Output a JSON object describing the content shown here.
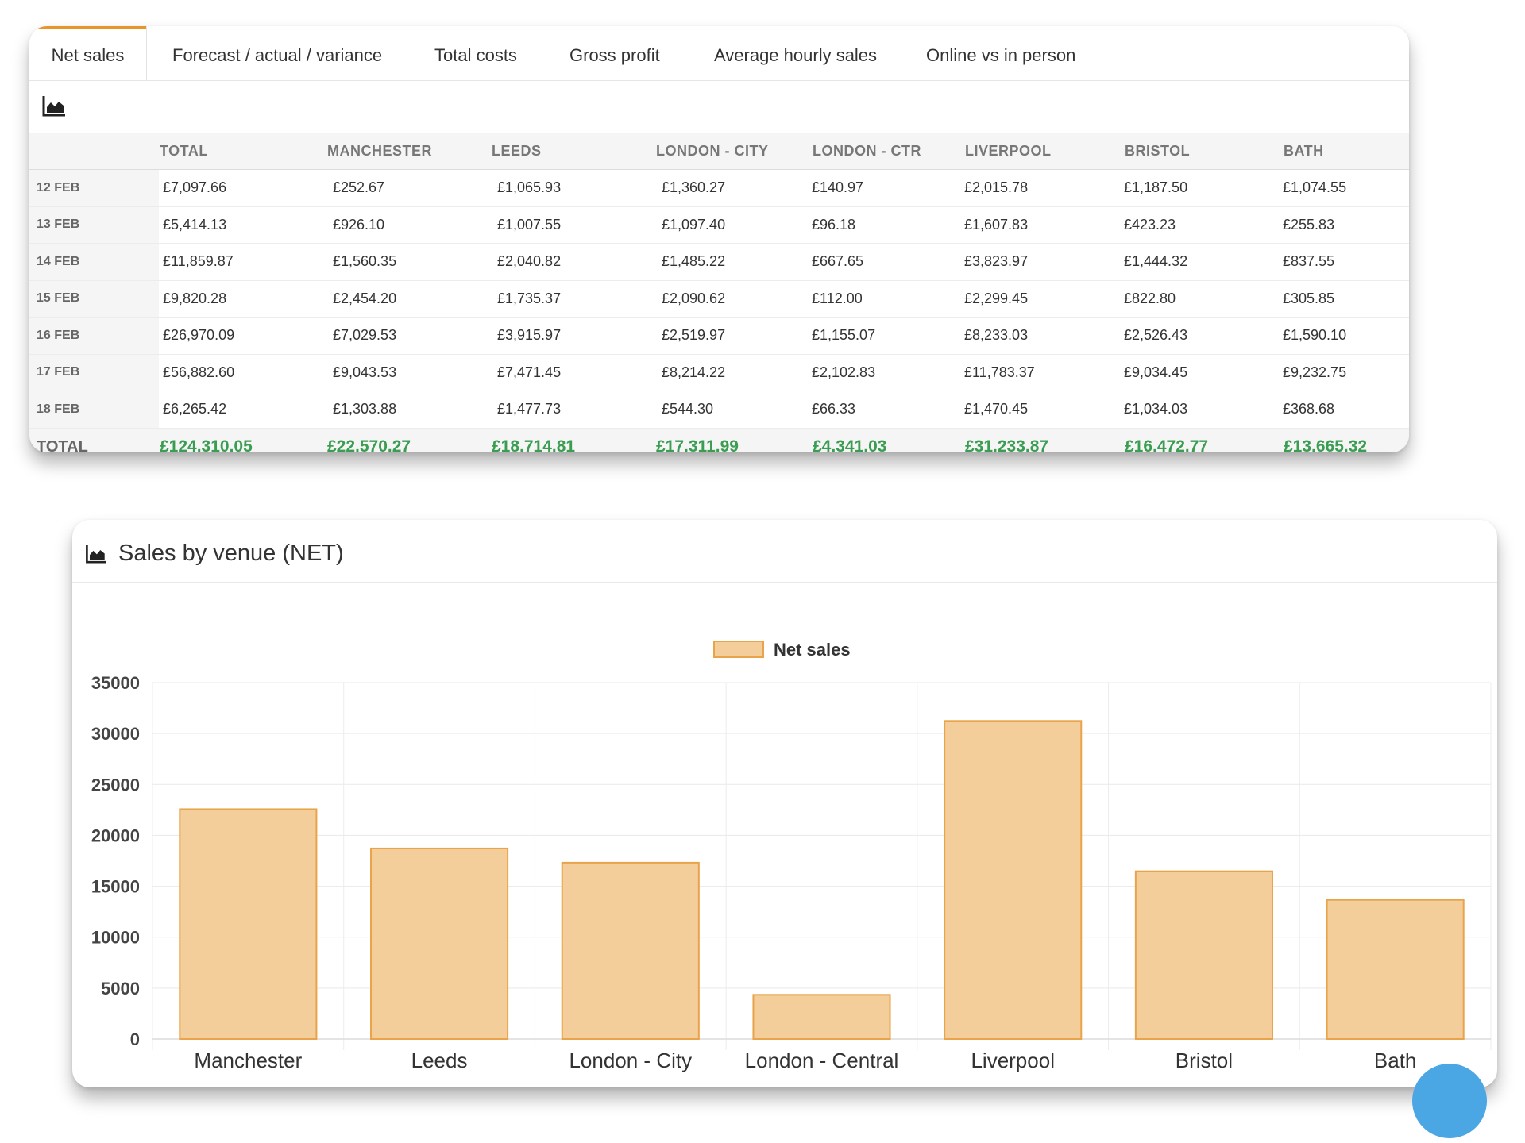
{
  "tabs": [
    {
      "label": "Net sales",
      "active": true
    },
    {
      "label": "Forecast / actual / variance",
      "active": false
    },
    {
      "label": "Total costs",
      "active": false
    },
    {
      "label": "Gross profit",
      "active": false
    },
    {
      "label": "Average hourly sales",
      "active": false
    },
    {
      "label": "Online vs in person",
      "active": false
    }
  ],
  "table": {
    "headers": [
      "",
      "TOTAL",
      "MANCHESTER",
      "LEEDS",
      "LONDON - CITY",
      "LONDON - CTR",
      "LIVERPOOL",
      "BRISTOL",
      "BATH"
    ],
    "rows": [
      [
        "12 FEB",
        "£7,097.66",
        "£252.67",
        "£1,065.93",
        "£1,360.27",
        "£140.97",
        "£2,015.78",
        "£1,187.50",
        "£1,074.55"
      ],
      [
        "13 FEB",
        "£5,414.13",
        "£926.10",
        "£1,007.55",
        "£1,097.40",
        "£96.18",
        "£1,607.83",
        "£423.23",
        "£255.83"
      ],
      [
        "14 FEB",
        "£11,859.87",
        "£1,560.35",
        "£2,040.82",
        "£1,485.22",
        "£667.65",
        "£3,823.97",
        "£1,444.32",
        "£837.55"
      ],
      [
        "15 FEB",
        "£9,820.28",
        "£2,454.20",
        "£1,735.37",
        "£2,090.62",
        "£112.00",
        "£2,299.45",
        "£822.80",
        "£305.85"
      ],
      [
        "16 FEB",
        "£26,970.09",
        "£7,029.53",
        "£3,915.97",
        "£2,519.97",
        "£1,155.07",
        "£8,233.03",
        "£2,526.43",
        "£1,590.10"
      ],
      [
        "17 FEB",
        "£56,882.60",
        "£9,043.53",
        "£7,471.45",
        "£8,214.22",
        "£2,102.83",
        "£11,783.37",
        "£9,034.45",
        "£9,232.75"
      ],
      [
        "18 FEB",
        "£6,265.42",
        "£1,303.88",
        "£1,477.73",
        "£544.30",
        "£66.33",
        "£1,470.45",
        "£1,034.03",
        "£368.68"
      ]
    ],
    "total_row": [
      "TOTAL",
      "£124,310.05",
      "£22,570.27",
      "£18,714.81",
      "£17,311.99",
      "£4,341.03",
      "£31,233.87",
      "£16,472.77",
      "£13,665.32"
    ]
  },
  "chart_card": {
    "title": "Sales by venue (NET)"
  },
  "colors": {
    "accent": "#e8952c",
    "total_green": "#3a9d52",
    "bar_fill": "#f3cd9a",
    "bar_stroke": "#e9a44b",
    "fab": "#4ba6e4"
  },
  "icons": [
    "area-chart-icon"
  ],
  "chart_data": {
    "type": "bar",
    "categories": [
      "Manchester",
      "Leeds",
      "London - City",
      "London - Central",
      "Liverpool",
      "Bristol",
      "Bath"
    ],
    "series": [
      {
        "name": "Net sales",
        "values": [
          22570.27,
          18714.81,
          17311.99,
          4341.03,
          31233.87,
          16472.77,
          13665.32
        ]
      }
    ],
    "title": "",
    "xlabel": "",
    "ylabel": "",
    "ylim": [
      0,
      35000
    ],
    "yticks": [
      35000,
      30000,
      25000,
      20000,
      15000,
      10000,
      5000,
      0
    ],
    "grid": true,
    "legend": "top-center"
  }
}
